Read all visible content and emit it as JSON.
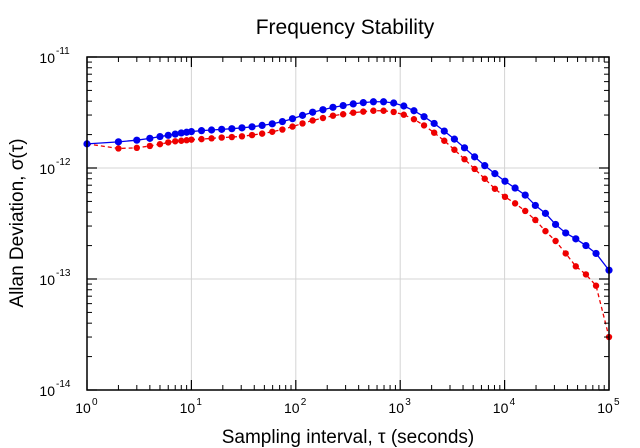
{
  "chart_data": {
    "type": "line",
    "title": "Frequency Stability",
    "xlabel": "Sampling interval, τ (seconds)",
    "ylabel": "Allan Deviation, σ(τ)",
    "xscale": "log",
    "yscale": "log",
    "xlim": [
      1,
      100000
    ],
    "ylim": [
      1e-14,
      1e-11
    ],
    "grid": true,
    "x_ticks": [
      {
        "base": "10",
        "exp": "0",
        "value": 1
      },
      {
        "base": "10",
        "exp": "1",
        "value": 10
      },
      {
        "base": "10",
        "exp": "2",
        "value": 100
      },
      {
        "base": "10",
        "exp": "3",
        "value": 1000
      },
      {
        "base": "10",
        "exp": "4",
        "value": 10000
      },
      {
        "base": "10",
        "exp": "5",
        "value": 100000
      }
    ],
    "y_ticks": [
      {
        "base": "10",
        "exp": "-14",
        "value": 1e-14
      },
      {
        "base": "10",
        "exp": "-13",
        "value": 1e-13
      },
      {
        "base": "10",
        "exp": "-12",
        "value": 1e-12
      },
      {
        "base": "10",
        "exp": "-11",
        "value": 1e-11
      }
    ],
    "series": [
      {
        "color": "#0000ee",
        "line_style": "solid",
        "x": [
          1,
          2,
          3,
          4,
          5,
          6,
          7,
          8,
          9,
          10,
          12.5,
          15.6,
          19.5,
          24.4,
          30.5,
          38.1,
          47.6,
          59.5,
          74.4,
          93,
          116,
          145,
          182,
          227,
          284,
          355,
          443,
          554,
          693,
          866,
          1083,
          1354,
          1692,
          2115,
          2644,
          3305,
          4131,
          5164,
          6455,
          8069,
          10086,
          12607,
          15759,
          19699,
          24624,
          30780,
          38475,
          48093,
          60117,
          75146,
          100000
        ],
        "y": [
          1.65e-12,
          1.72e-12,
          1.78e-12,
          1.85e-12,
          1.92e-12,
          1.97e-12,
          2.02e-12,
          2.07e-12,
          2.1e-12,
          2.13e-12,
          2.17e-12,
          2.2e-12,
          2.23e-12,
          2.26e-12,
          2.3e-12,
          2.35e-12,
          2.42e-12,
          2.5e-12,
          2.62e-12,
          2.78e-12,
          2.98e-12,
          3.18e-12,
          3.35e-12,
          3.52e-12,
          3.65e-12,
          3.78e-12,
          3.88e-12,
          3.95e-12,
          3.95e-12,
          3.85e-12,
          3.62e-12,
          3.28e-12,
          2.9e-12,
          2.52e-12,
          2.15e-12,
          1.82e-12,
          1.52e-12,
          1.26e-12,
          1.05e-12,
          8.9e-13,
          7.6e-13,
          6.6e-13,
          5.7e-13,
          4.6e-13,
          3.9e-13,
          3.1e-13,
          2.6e-13,
          2.3e-13,
          2e-13,
          1.7e-13,
          1.2e-13
        ]
      },
      {
        "color": "#ee0000",
        "line_style": "dashed",
        "x": [
          1,
          2,
          3,
          4,
          5,
          6,
          7,
          8,
          9,
          10,
          12.5,
          15.6,
          19.5,
          24.4,
          30.5,
          38.1,
          47.6,
          59.5,
          74.4,
          93,
          116,
          145,
          182,
          227,
          284,
          355,
          443,
          554,
          693,
          866,
          1083,
          1354,
          1692,
          2115,
          2644,
          3305,
          4131,
          5164,
          6455,
          8069,
          10086,
          12607,
          15759,
          19699,
          24624,
          30780,
          38475,
          48093,
          60117,
          75146,
          100000
        ],
        "y": [
          1.65e-12,
          1.5e-12,
          1.52e-12,
          1.58e-12,
          1.64e-12,
          1.7e-12,
          1.74e-12,
          1.76e-12,
          1.78e-12,
          1.8e-12,
          1.82e-12,
          1.85e-12,
          1.88e-12,
          1.9e-12,
          1.93e-12,
          1.98e-12,
          2.04e-12,
          2.12e-12,
          2.22e-12,
          2.36e-12,
          2.52e-12,
          2.68e-12,
          2.82e-12,
          2.96e-12,
          3.05e-12,
          3.15e-12,
          3.22e-12,
          3.28e-12,
          3.28e-12,
          3.2e-12,
          3.02e-12,
          2.75e-12,
          2.42e-12,
          2.08e-12,
          1.76e-12,
          1.46e-12,
          1.2e-12,
          9.8e-13,
          8e-13,
          6.5e-13,
          5.5e-13,
          4.8e-13,
          4.1e-13,
          3.4e-13,
          2.7e-13,
          2.2e-13,
          1.7e-13,
          1.3e-13,
          1.1e-13,
          8.7e-14,
          3e-14
        ]
      }
    ]
  }
}
